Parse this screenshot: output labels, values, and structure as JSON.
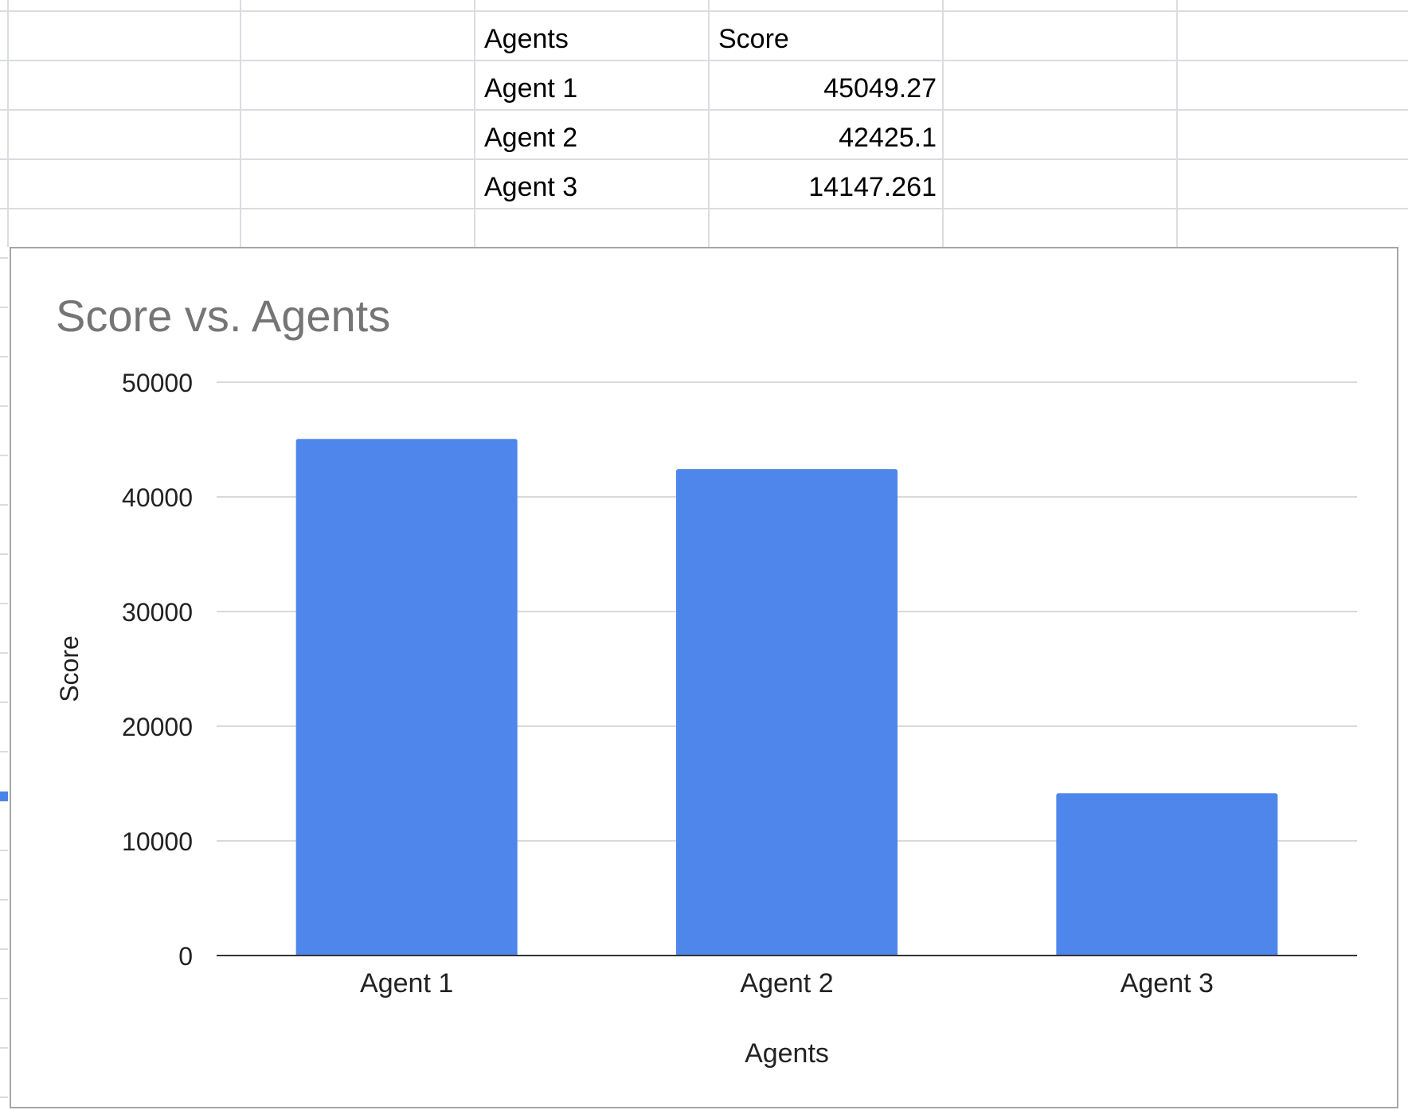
{
  "table": {
    "headers": [
      "Agents",
      "Score"
    ],
    "rows": [
      {
        "agent": "Agent 1",
        "score": "45049.27"
      },
      {
        "agent": "Agent 2",
        "score": "42425.1"
      },
      {
        "agent": "Agent 3",
        "score": "14147.261"
      }
    ]
  },
  "chart_data": {
    "type": "bar",
    "title": "Score vs. Agents",
    "xlabel": "Agents",
    "ylabel": "Score",
    "categories": [
      "Agent 1",
      "Agent 2",
      "Agent 3"
    ],
    "series": [
      {
        "values": [
          45049.27,
          42425.1,
          14147.261
        ]
      }
    ],
    "ylim": [
      0,
      50000
    ],
    "yticks": [
      "0",
      "10000",
      "20000",
      "30000",
      "40000",
      "50000"
    ],
    "grid": true,
    "legend": "none",
    "bar_color": "#4f86ec",
    "title_color": "#757575",
    "gridline_color": "#d9d9d9"
  }
}
